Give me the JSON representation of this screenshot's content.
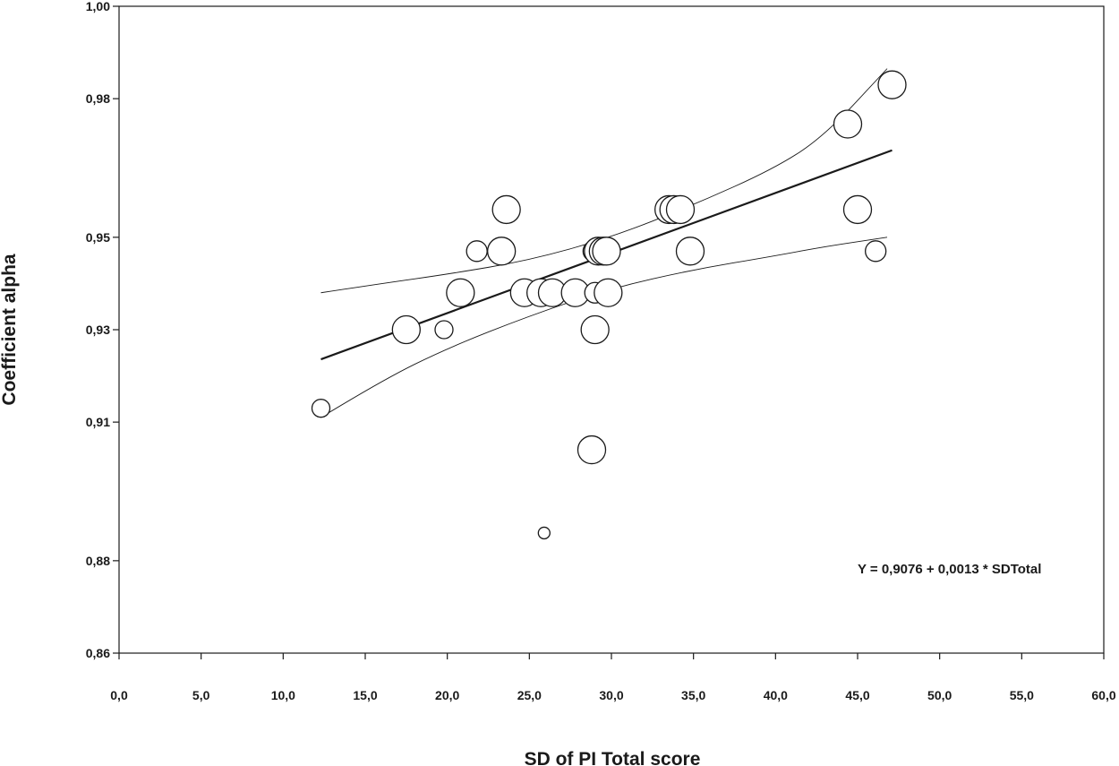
{
  "chart_data": {
    "type": "scatter",
    "title": "",
    "xlabel": "SD of PI Total score",
    "ylabel": "Coefficient alpha",
    "xlim": [
      0,
      60
    ],
    "ylim": [
      0.86,
      1.0
    ],
    "x_ticks": [
      "0,0",
      "5,0",
      "10,0",
      "15,0",
      "20,0",
      "25,0",
      "30,0",
      "35,0",
      "40,0",
      "45,0",
      "50,0",
      "55,0",
      "60,0"
    ],
    "y_ticks": [
      {
        "value": 1.0,
        "label": "1,00"
      },
      {
        "value": 0.98,
        "label": "0,98"
      },
      {
        "value": 0.95,
        "label": "0,95"
      },
      {
        "value": 0.93,
        "label": "0,93"
      },
      {
        "value": 0.91,
        "label": "0,91"
      },
      {
        "value": 0.88,
        "label": "0,88"
      },
      {
        "value": 0.86,
        "label": "0,86"
      }
    ],
    "grid": false,
    "points": [
      {
        "x": 12.3,
        "y": 0.913,
        "size": "small"
      },
      {
        "x": 17.5,
        "y": 0.93,
        "size": "large"
      },
      {
        "x": 19.8,
        "y": 0.93,
        "size": "small"
      },
      {
        "x": 20.8,
        "y": 0.938,
        "size": "large"
      },
      {
        "x": 21.8,
        "y": 0.947,
        "size": "medium"
      },
      {
        "x": 23.3,
        "y": 0.947,
        "size": "large"
      },
      {
        "x": 23.6,
        "y": 0.956,
        "size": "large"
      },
      {
        "x": 24.7,
        "y": 0.938,
        "size": "large"
      },
      {
        "x": 25.7,
        "y": 0.938,
        "size": "large"
      },
      {
        "x": 26.4,
        "y": 0.938,
        "size": "large"
      },
      {
        "x": 25.9,
        "y": 0.886,
        "size": "tiny"
      },
      {
        "x": 27.8,
        "y": 0.938,
        "size": "large"
      },
      {
        "x": 28.8,
        "y": 0.904,
        "size": "large"
      },
      {
        "x": 29.0,
        "y": 0.93,
        "size": "large"
      },
      {
        "x": 29.0,
        "y": 0.938,
        "size": "medium"
      },
      {
        "x": 29.8,
        "y": 0.938,
        "size": "large"
      },
      {
        "x": 28.9,
        "y": 0.947,
        "size": "medium"
      },
      {
        "x": 29.2,
        "y": 0.947,
        "size": "large"
      },
      {
        "x": 29.5,
        "y": 0.947,
        "size": "large"
      },
      {
        "x": 29.7,
        "y": 0.947,
        "size": "large"
      },
      {
        "x": 33.5,
        "y": 0.956,
        "size": "large"
      },
      {
        "x": 33.8,
        "y": 0.956,
        "size": "large"
      },
      {
        "x": 34.2,
        "y": 0.956,
        "size": "large"
      },
      {
        "x": 34.8,
        "y": 0.947,
        "size": "large"
      },
      {
        "x": 44.4,
        "y": 0.9745,
        "size": "large"
      },
      {
        "x": 45.0,
        "y": 0.956,
        "size": "large"
      },
      {
        "x": 46.1,
        "y": 0.947,
        "size": "medium"
      },
      {
        "x": 47.1,
        "y": 0.983,
        "size": "large"
      }
    ],
    "regression": {
      "intercept": 0.9076,
      "slope": 0.0013,
      "x_range": [
        12.3,
        47.1
      ]
    },
    "confidence_upper": [
      [
        12.3,
        0.938
      ],
      [
        16,
        0.94
      ],
      [
        20,
        0.942
      ],
      [
        25,
        0.945
      ],
      [
        30,
        0.95
      ],
      [
        35,
        0.957
      ],
      [
        40,
        0.965
      ],
      [
        43,
        0.972
      ],
      [
        46.8,
        0.9865
      ]
    ],
    "confidence_lower": [
      [
        12.3,
        0.911
      ],
      [
        16,
        0.919
      ],
      [
        20,
        0.926
      ],
      [
        25,
        0.933
      ],
      [
        30,
        0.939
      ],
      [
        35,
        0.943
      ],
      [
        40,
        0.946
      ],
      [
        43,
        0.948
      ],
      [
        46.8,
        0.95
      ]
    ],
    "annotation": "Y = 0,9076 + 0,0013 * SDTotal",
    "colors": {
      "axis": "#1a1a1a",
      "marker_stroke": "#1a1a1a",
      "marker_fill": "#ffffff",
      "line": "#1a1a1a"
    }
  }
}
